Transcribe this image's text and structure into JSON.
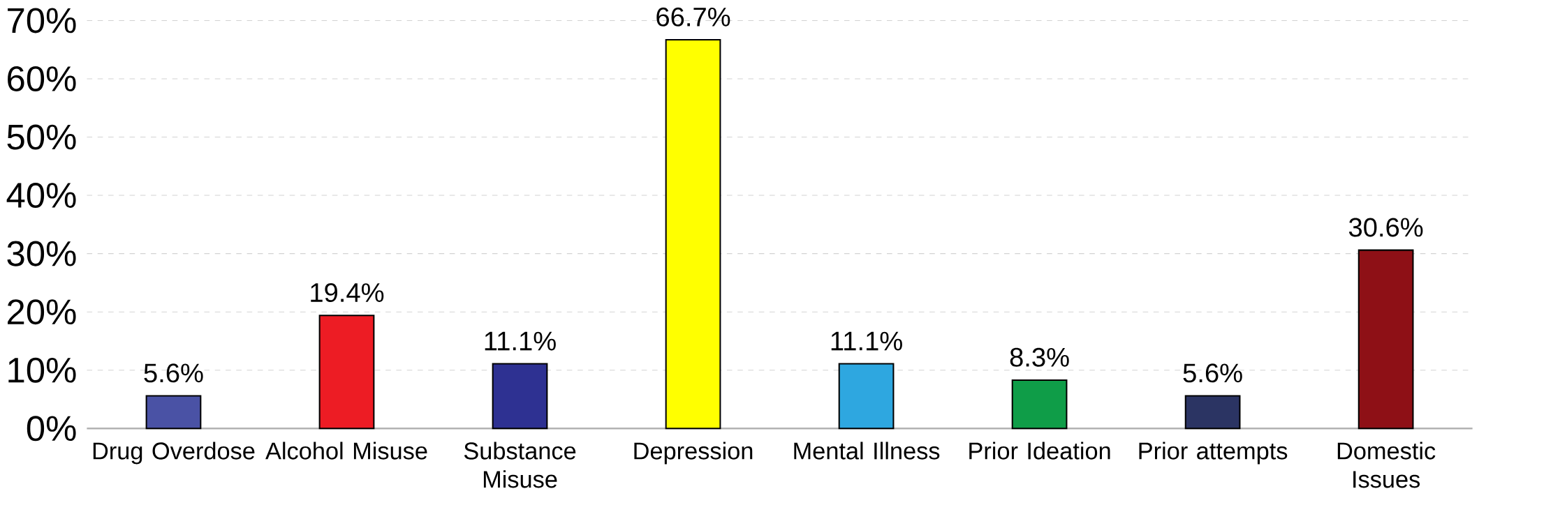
{
  "chart_data": {
    "type": "bar",
    "categories": [
      "Drug Overdose",
      "Alcohol Misuse",
      "Substance Misuse",
      "Depression",
      "Mental Illness",
      "Prior Ideation",
      "Prior attempts",
      "Domestic Issues"
    ],
    "values": [
      5.6,
      19.4,
      11.1,
      66.7,
      11.1,
      8.3,
      5.6,
      30.6
    ],
    "colors": [
      "#4a52a5",
      "#ed1c24",
      "#2e3192",
      "#ffff00",
      "#2ea7e0",
      "#0f9d48",
      "#2b3463",
      "#8e1016"
    ],
    "value_labels": [
      "5.6%",
      "19.4%",
      "11.1%",
      "66.7%",
      "11.1%",
      "8.3%",
      "5.6%",
      "30.6%"
    ],
    "ylim": [
      0,
      70
    ],
    "yticks": [
      {
        "value": 0,
        "label": "0%"
      },
      {
        "value": 10,
        "label": "10%"
      },
      {
        "value": 20,
        "label": "20%"
      },
      {
        "value": 30,
        "label": "30%"
      },
      {
        "value": 40,
        "label": "40%"
      },
      {
        "value": 50,
        "label": "50%"
      },
      {
        "value": 60,
        "label": "60%"
      },
      {
        "value": 70,
        "label": "70%"
      }
    ],
    "grid": "y"
  }
}
